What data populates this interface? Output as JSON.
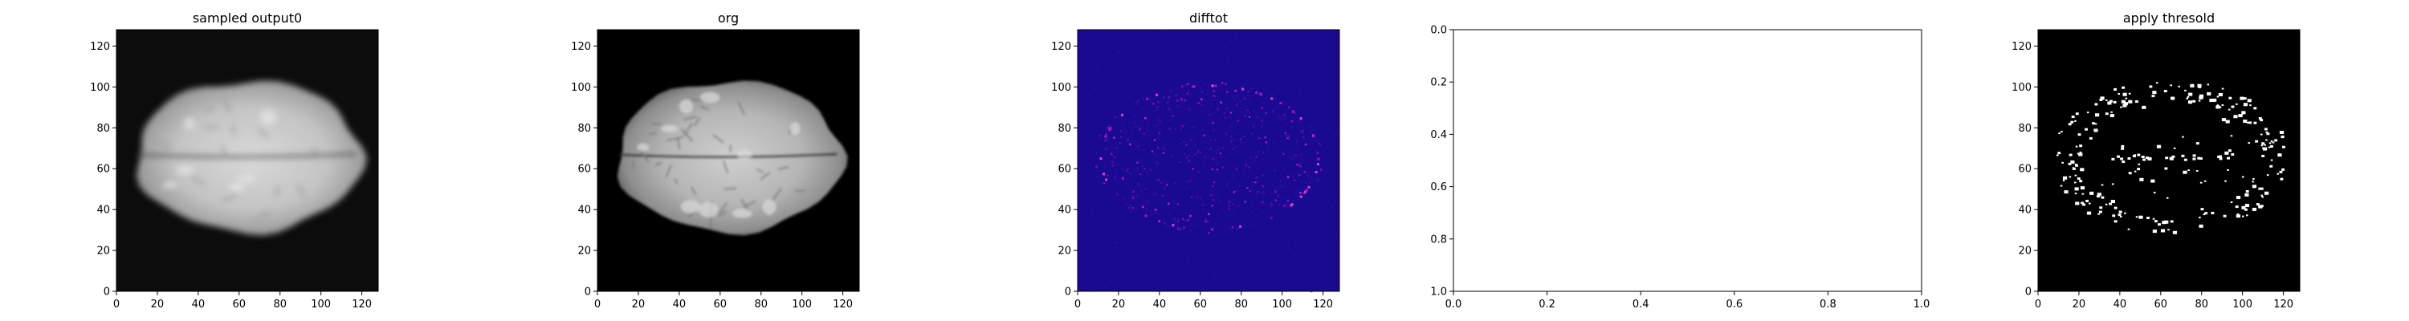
{
  "figure": {
    "background": "#ffffff"
  },
  "chart_data": [
    {
      "type": "heatmap",
      "title": "sampled output0",
      "xticks": [
        0,
        20,
        40,
        60,
        80,
        100,
        120
      ],
      "yticks": [
        0,
        20,
        40,
        60,
        80,
        100,
        120
      ],
      "xlim": [
        0,
        128
      ],
      "ylim": [
        128,
        0
      ],
      "colormap": "gray",
      "content": "blurred-brain-axial-slice"
    },
    {
      "type": "heatmap",
      "title": "org",
      "xticks": [
        0,
        20,
        40,
        60,
        80,
        100,
        120
      ],
      "yticks": [
        0,
        20,
        40,
        60,
        80,
        100,
        120
      ],
      "xlim": [
        0,
        128
      ],
      "ylim": [
        128,
        0
      ],
      "colormap": "gray",
      "content": "brain-axial-slice"
    },
    {
      "type": "heatmap",
      "title": "difftot",
      "xticks": [
        0,
        20,
        40,
        60,
        80,
        100,
        120
      ],
      "yticks": [
        0,
        20,
        40,
        60,
        80,
        100,
        120
      ],
      "xlim": [
        0,
        128
      ],
      "ylim": [
        128,
        0
      ],
      "colormap": "plasma",
      "content": "difference-map"
    },
    {
      "type": "empty",
      "title": "",
      "xticks": [
        "0.0",
        "0.2",
        "0.4",
        "0.6",
        "0.8",
        "1.0"
      ],
      "yticks": [
        "0.0",
        "0.2",
        "0.4",
        "0.6",
        "0.8",
        "1.0"
      ],
      "xlim": [
        0,
        1
      ],
      "ylim": [
        0,
        1
      ]
    },
    {
      "type": "heatmap",
      "title": "apply thresold",
      "xticks": [
        0,
        20,
        40,
        60,
        80,
        100,
        120
      ],
      "yticks": [
        0,
        20,
        40,
        60,
        80,
        100,
        120
      ],
      "xlim": [
        0,
        128
      ],
      "ylim": [
        128,
        0
      ],
      "colormap": "binary-threshold",
      "content": "thresholded-speckle-mask"
    }
  ]
}
